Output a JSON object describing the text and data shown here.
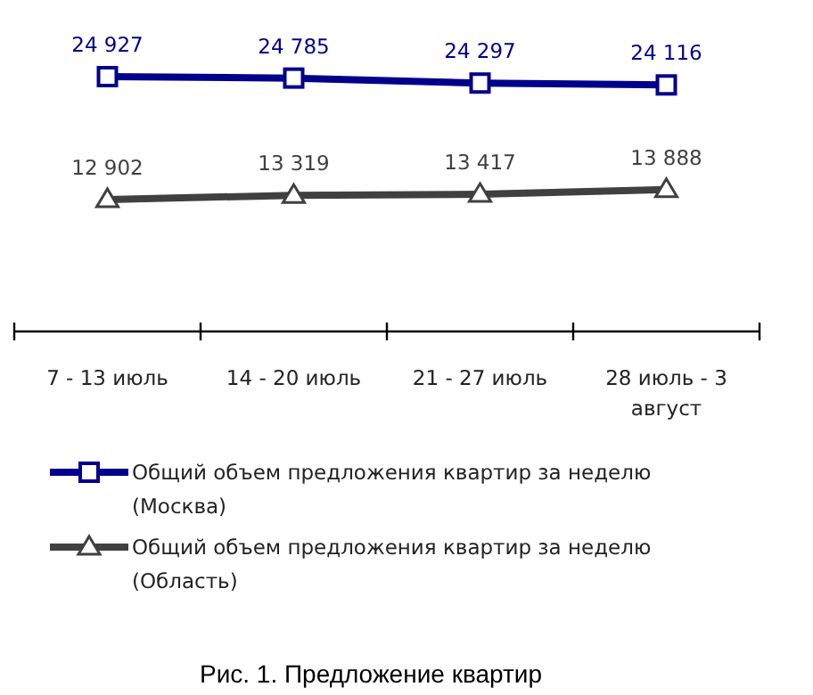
{
  "chart_data": {
    "type": "line",
    "title": "Рис. 1. Предложение квартир",
    "categories": [
      "7 - 13 июль",
      "14 - 20 июль",
      "21 - 27 июль",
      "28 июль - 3 август"
    ],
    "series": [
      {
        "name": "Общий объем предложения квартир за неделю (Москва)",
        "color": "#00008b",
        "values": [
          24927,
          24785,
          24297,
          24116
        ],
        "marker": "square"
      },
      {
        "name": "Общий объем предложения квартир за неделю (Область)",
        "color": "#404040",
        "values": [
          12902,
          13319,
          13417,
          13888
        ],
        "marker": "triangle"
      }
    ],
    "tick_labels": "x",
    "data_labels": true,
    "legend": "bottom",
    "line_style": "solid"
  }
}
